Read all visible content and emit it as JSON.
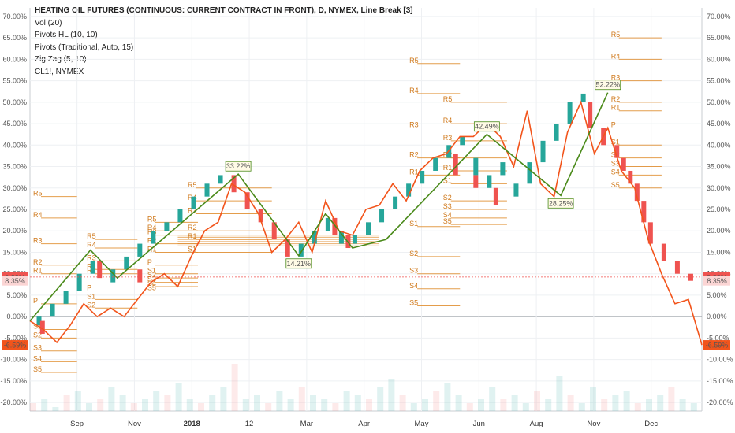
{
  "legend": {
    "title": "HEATING OIL FUTURES (CONTINUOUS: CURRENT CONTRACT IN FRONT), D, NYMEX, Line Break [3]",
    "lines": [
      "Vol (20)",
      "Pivots HL (10, 10)",
      "Pivots (Traditional, Auto, 15)",
      "Zig Zag (5, 10)",
      "CL1!, NYMEX"
    ]
  },
  "colors": {
    "up": "#26a69a",
    "down": "#ef5350",
    "cl1": "#f2541b",
    "zigzag": "#4a8a1a",
    "pivot": "#e08c2c",
    "grid": "#eef0f3"
  },
  "chart_data": {
    "type": "line",
    "y_axis": {
      "unit": "%",
      "ylim": [
        -22,
        72
      ],
      "ticks": [
        "70.00%",
        "65.00%",
        "60.00%",
        "55.00%",
        "50.00%",
        "45.00%",
        "40.00%",
        "35.00%",
        "30.00%",
        "25.00%",
        "20.00%",
        "15.00%",
        "10.00%",
        "5.00%",
        "0.00%",
        "-5.00%",
        "-10.00%",
        "-15.00%",
        "-20.00%"
      ],
      "tick_values": [
        70,
        65,
        60,
        55,
        50,
        45,
        40,
        35,
        30,
        25,
        20,
        15,
        10,
        5,
        0,
        -5,
        -10,
        -15,
        -20
      ]
    },
    "x_axis": {
      "labels": [
        "Sep",
        "Nov",
        "2018",
        "12",
        "Mar",
        "Apr",
        "May",
        "Jun",
        "Aug",
        "Nov",
        "Dec"
      ]
    },
    "badges": {
      "left": [
        {
          "text": "9.23%",
          "value": 9.23,
          "color": "#ef5350"
        },
        {
          "text": "8.35%",
          "value": 8.35,
          "color": "#fbd5d4"
        },
        {
          "text": "-6.59%",
          "value": -6.59,
          "color": "#f2541b"
        }
      ],
      "right": [
        {
          "text": "9.23%",
          "value": 9.23,
          "color": "#ef5350"
        },
        {
          "text": "8.35%",
          "value": 8.35,
          "color": "#fbd5d4"
        },
        {
          "text": "-6.59%",
          "value": -6.59,
          "color": "#f2541b"
        }
      ]
    },
    "zigzag_labels": [
      {
        "text": "33.22%",
        "x": 0.31,
        "y": 33.22,
        "above": true
      },
      {
        "text": "14.21%",
        "x": 0.4,
        "y": 14.21,
        "above": false
      },
      {
        "text": "42.49%",
        "x": 0.68,
        "y": 42.49,
        "above": true
      },
      {
        "text": "28.25%",
        "x": 0.79,
        "y": 28.25,
        "above": false
      },
      {
        "text": "52.22%",
        "x": 0.86,
        "y": 52.22,
        "above": true
      }
    ],
    "zigzag_path": [
      [
        0.0,
        -1.0
      ],
      [
        0.09,
        15.5
      ],
      [
        0.13,
        9.0
      ],
      [
        0.31,
        33.22
      ],
      [
        0.4,
        14.21
      ],
      [
        0.44,
        24.0
      ],
      [
        0.48,
        16.0
      ],
      [
        0.53,
        18.0
      ],
      [
        0.68,
        42.49
      ],
      [
        0.79,
        28.25
      ],
      [
        0.86,
        52.22
      ]
    ],
    "series": [
      {
        "name": "CL1!, NYMEX",
        "x": [
          0.0,
          0.02,
          0.04,
          0.06,
          0.08,
          0.1,
          0.12,
          0.14,
          0.16,
          0.18,
          0.2,
          0.22,
          0.24,
          0.26,
          0.28,
          0.3,
          0.32,
          0.34,
          0.36,
          0.38,
          0.4,
          0.42,
          0.44,
          0.46,
          0.48,
          0.5,
          0.52,
          0.54,
          0.56,
          0.58,
          0.6,
          0.62,
          0.64,
          0.66,
          0.68,
          0.7,
          0.72,
          0.74,
          0.76,
          0.78,
          0.8,
          0.82,
          0.84,
          0.86,
          0.88,
          0.9,
          0.92,
          0.94,
          0.96,
          0.98,
          1.0
        ],
        "values": [
          -1,
          -3,
          -6,
          -2,
          3,
          0,
          2,
          0,
          4,
          8,
          10,
          7,
          14,
          20,
          22,
          31,
          29,
          24,
          15,
          18,
          22,
          15,
          27,
          20,
          19,
          25,
          26,
          31,
          27,
          34,
          37,
          38,
          42,
          42,
          45,
          42,
          35,
          48,
          31,
          28,
          43,
          50,
          38,
          44,
          34,
          30,
          18,
          10,
          3,
          4,
          -6.59
        ]
      }
    ],
    "renko_up": [
      [
        0.01,
        -2,
        0
      ],
      [
        0.03,
        0,
        3
      ],
      [
        0.05,
        3,
        6
      ],
      [
        0.07,
        6,
        10
      ],
      [
        0.09,
        10,
        13
      ],
      [
        0.12,
        8,
        11
      ],
      [
        0.14,
        11,
        14
      ],
      [
        0.16,
        14,
        17
      ],
      [
        0.18,
        17,
        20
      ],
      [
        0.2,
        20,
        22
      ],
      [
        0.22,
        22,
        25
      ],
      [
        0.24,
        25,
        28
      ],
      [
        0.26,
        28,
        31
      ],
      [
        0.28,
        31,
        33
      ],
      [
        0.4,
        14,
        17
      ],
      [
        0.42,
        17,
        20
      ],
      [
        0.44,
        20,
        23
      ],
      [
        0.46,
        17,
        20
      ],
      [
        0.48,
        17,
        19
      ],
      [
        0.5,
        19,
        22
      ],
      [
        0.52,
        22,
        25
      ],
      [
        0.54,
        25,
        28
      ],
      [
        0.56,
        28,
        31
      ],
      [
        0.58,
        31,
        34
      ],
      [
        0.6,
        34,
        37
      ],
      [
        0.62,
        37,
        40
      ],
      [
        0.64,
        40,
        42
      ],
      [
        0.66,
        33,
        37
      ],
      [
        0.68,
        30,
        33
      ],
      [
        0.7,
        33,
        36
      ],
      [
        0.72,
        28,
        31
      ],
      [
        0.74,
        31,
        36
      ],
      [
        0.76,
        36,
        41
      ],
      [
        0.78,
        41,
        45
      ],
      [
        0.8,
        45,
        50
      ],
      [
        0.82,
        50,
        52
      ]
    ],
    "renko_down": [
      [
        0.015,
        -4,
        -1
      ],
      [
        0.1,
        9,
        13
      ],
      [
        0.16,
        8,
        11
      ],
      [
        0.3,
        29,
        33
      ],
      [
        0.32,
        25,
        29
      ],
      [
        0.34,
        22,
        25
      ],
      [
        0.36,
        18,
        22
      ],
      [
        0.38,
        14,
        18
      ],
      [
        0.45,
        19,
        23
      ],
      [
        0.47,
        16,
        19
      ],
      [
        0.63,
        33,
        38
      ],
      [
        0.66,
        30,
        33
      ],
      [
        0.69,
        26,
        30
      ],
      [
        0.83,
        44,
        50
      ],
      [
        0.85,
        40,
        44
      ],
      [
        0.87,
        37,
        40
      ],
      [
        0.88,
        34,
        37
      ],
      [
        0.89,
        31,
        34
      ],
      [
        0.9,
        27,
        31
      ],
      [
        0.91,
        22,
        27
      ],
      [
        0.92,
        17,
        22
      ],
      [
        0.94,
        13,
        17
      ],
      [
        0.96,
        10,
        13
      ],
      [
        0.98,
        8.35,
        10
      ]
    ],
    "volume_bars": [
      2,
      3,
      1,
      4,
      5,
      2,
      3,
      6,
      4,
      2,
      3,
      5,
      4,
      7,
      3,
      2,
      4,
      6,
      12,
      3,
      4,
      2,
      5,
      3,
      6,
      4,
      3,
      2,
      5,
      4,
      3,
      6,
      8,
      4,
      2,
      3,
      5,
      7,
      4,
      2,
      3,
      6,
      3,
      4,
      2,
      5,
      3,
      9,
      4,
      2,
      6,
      3,
      4,
      5,
      2,
      3,
      4,
      6,
      3,
      2
    ]
  },
  "pivot_groups": [
    {
      "x0": 0.0,
      "x1": 0.07,
      "levels": [
        {
          "label": "R5",
          "v": 28
        },
        {
          "label": "R4",
          "v": 23
        },
        {
          "label": "R3",
          "v": 17
        },
        {
          "label": "R2",
          "v": 12
        },
        {
          "label": "R1",
          "v": 10
        },
        {
          "label": "P",
          "v": 3
        },
        {
          "label": "S1",
          "v": -3
        },
        {
          "label": "S2",
          "v": -5
        },
        {
          "label": "S3",
          "v": -8
        },
        {
          "label": "S4",
          "v": -10.5
        },
        {
          "label": "S5",
          "v": -13
        }
      ]
    },
    {
      "x0": 0.08,
      "x1": 0.16,
      "levels": [
        {
          "label": "R5",
          "v": 18
        },
        {
          "label": "R4",
          "v": 16
        },
        {
          "label": "R3",
          "v": 13
        },
        {
          "label": "R2",
          "v": 11
        },
        {
          "label": "R1",
          "v": 10
        },
        {
          "label": "P",
          "v": 6
        },
        {
          "label": "S1",
          "v": 4
        },
        {
          "label": "S2",
          "v": 2
        }
      ]
    },
    {
      "x0": 0.17,
      "x1": 0.25,
      "levels": [
        {
          "label": "R5",
          "v": 22
        },
        {
          "label": "R4",
          "v": 20
        },
        {
          "label": "R3",
          "v": 19
        },
        {
          "label": "R2",
          "v": 17
        },
        {
          "label": "R1",
          "v": 15
        },
        {
          "label": "P",
          "v": 12
        },
        {
          "label": "S1",
          "v": 10
        },
        {
          "label": "S2",
          "v": 9
        },
        {
          "label": "S3",
          "v": 8
        },
        {
          "label": "S4",
          "v": 7
        },
        {
          "label": "S5",
          "v": 6
        }
      ]
    },
    {
      "x0": 0.23,
      "x1": 0.36,
      "levels": [
        {
          "label": "R5",
          "v": 30
        },
        {
          "label": "R4",
          "v": 27
        },
        {
          "label": "R3",
          "v": 24
        },
        {
          "label": "R2",
          "v": 20
        },
        {
          "label": "R1",
          "v": 18
        },
        {
          "label": "S1",
          "v": 15
        }
      ]
    },
    {
      "x0": 0.56,
      "x1": 0.64,
      "levels": [
        {
          "label": "R5",
          "v": 59
        },
        {
          "label": "R4",
          "v": 52
        },
        {
          "label": "R3",
          "v": 44
        },
        {
          "label": "R2",
          "v": 37
        },
        {
          "label": "R1",
          "v": 33
        },
        {
          "label": "S1",
          "v": 21
        },
        {
          "label": "S2",
          "v": 14
        },
        {
          "label": "S3",
          "v": 10
        },
        {
          "label": "S4",
          "v": 6.5
        },
        {
          "label": "S5",
          "v": 2.5
        }
      ]
    },
    {
      "x0": 0.61,
      "x1": 0.71,
      "levels": [
        {
          "label": "R5",
          "v": 50
        },
        {
          "label": "R4",
          "v": 45
        },
        {
          "label": "R3",
          "v": 41
        },
        {
          "label": "R2",
          "v": 37
        },
        {
          "label": "R1",
          "v": 34
        },
        {
          "label": "S1",
          "v": 31
        },
        {
          "label": "S2",
          "v": 27
        },
        {
          "label": "S3",
          "v": 25
        },
        {
          "label": "S4",
          "v": 23
        },
        {
          "label": "S5",
          "v": 21.5
        }
      ]
    },
    {
      "x0": 0.86,
      "x1": 0.94,
      "levels": [
        {
          "label": "R5",
          "v": 65
        },
        {
          "label": "R4",
          "v": 60
        },
        {
          "label": "R3",
          "v": 55
        },
        {
          "label": "R2",
          "v": 50
        },
        {
          "label": "R1",
          "v": 48
        },
        {
          "label": "P",
          "v": 44
        },
        {
          "label": "S1",
          "v": 40
        },
        {
          "label": "S2",
          "v": 37
        },
        {
          "label": "S3",
          "v": 35
        },
        {
          "label": "S4",
          "v": 33
        },
        {
          "label": "S5",
          "v": 30
        }
      ]
    }
  ]
}
